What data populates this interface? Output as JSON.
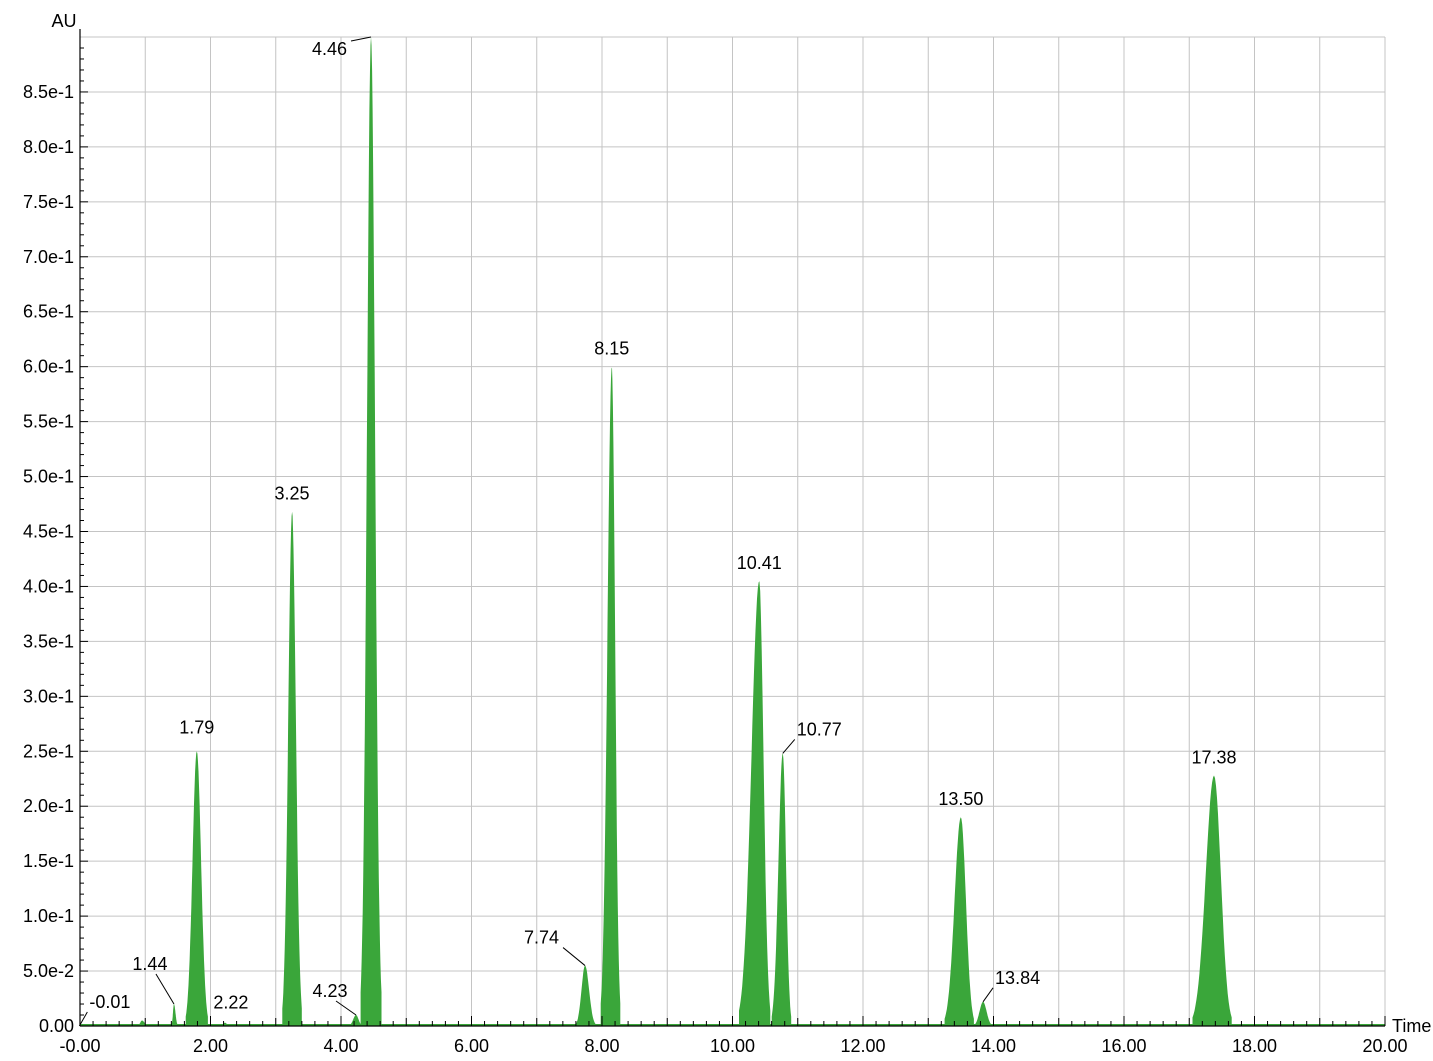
{
  "chart_data": {
    "type": "area",
    "title": "",
    "xlabel": "Time",
    "ylabel": "AU",
    "xlim": [
      0,
      20
    ],
    "ylim": [
      0,
      0.9
    ],
    "grid": true,
    "color": "#3aa63a",
    "x_ticks": [
      0,
      2,
      4,
      6,
      8,
      10,
      12,
      14,
      16,
      18,
      20
    ],
    "x_tick_labels": [
      "-0.00",
      "2.00",
      "4.00",
      "6.00",
      "8.00",
      "10.00",
      "12.00",
      "14.00",
      "16.00",
      "18.00",
      "20.00"
    ],
    "y_ticks": [
      0,
      0.05,
      0.1,
      0.15,
      0.2,
      0.25,
      0.3,
      0.35,
      0.4,
      0.45,
      0.5,
      0.55,
      0.6,
      0.65,
      0.7,
      0.75,
      0.8,
      0.85
    ],
    "y_tick_labels": [
      "0.00",
      "5.0e-2",
      "1.0e-1",
      "1.5e-1",
      "2.0e-1",
      "2.5e-1",
      "3.0e-1",
      "3.5e-1",
      "4.0e-1",
      "4.5e-1",
      "5.0e-1",
      "5.5e-1",
      "6.0e-1",
      "6.5e-1",
      "7.0e-1",
      "7.5e-1",
      "8.0e-1",
      "8.5e-1"
    ],
    "peaks": [
      {
        "label": "-0.01",
        "rt": -0.01,
        "height": 0.0,
        "start": -0.01,
        "end": -0.01
      },
      {
        "label": "",
        "rt": 0.95,
        "height": 0.005,
        "start": 0.88,
        "end": 1.05
      },
      {
        "label": "1.44",
        "rt": 1.44,
        "height": 0.02,
        "start": 1.4,
        "end": 1.5
      },
      {
        "label": "1.79",
        "rt": 1.79,
        "height": 0.25,
        "start": 1.62,
        "end": 1.96
      },
      {
        "label": "2.22",
        "rt": 2.22,
        "height": 0.003,
        "start": 2.15,
        "end": 2.3
      },
      {
        "label": "3.25",
        "rt": 3.25,
        "height": 0.468,
        "start": 3.1,
        "end": 3.4
      },
      {
        "label": "4.23",
        "rt": 4.23,
        "height": 0.01,
        "start": 4.12,
        "end": 4.33
      },
      {
        "label": "4.46",
        "rt": 4.46,
        "height": 0.9,
        "start": 4.3,
        "end": 4.62
      },
      {
        "label": "7.74",
        "rt": 7.74,
        "height": 0.055,
        "start": 7.6,
        "end": 7.9
      },
      {
        "label": "8.15",
        "rt": 8.15,
        "height": 0.6,
        "start": 7.98,
        "end": 8.28
      },
      {
        "label": "10.41",
        "rt": 10.41,
        "height": 0.405,
        "start": 10.1,
        "end": 10.58
      },
      {
        "label": "10.77",
        "rt": 10.77,
        "height": 0.248,
        "start": 10.6,
        "end": 10.9
      },
      {
        "label": "13.50",
        "rt": 13.5,
        "height": 0.19,
        "start": 13.25,
        "end": 13.7
      },
      {
        "label": "13.84",
        "rt": 13.84,
        "height": 0.022,
        "start": 13.7,
        "end": 13.98
      },
      {
        "label": "17.38",
        "rt": 17.38,
        "height": 0.228,
        "start": 17.05,
        "end": 17.65
      }
    ]
  }
}
